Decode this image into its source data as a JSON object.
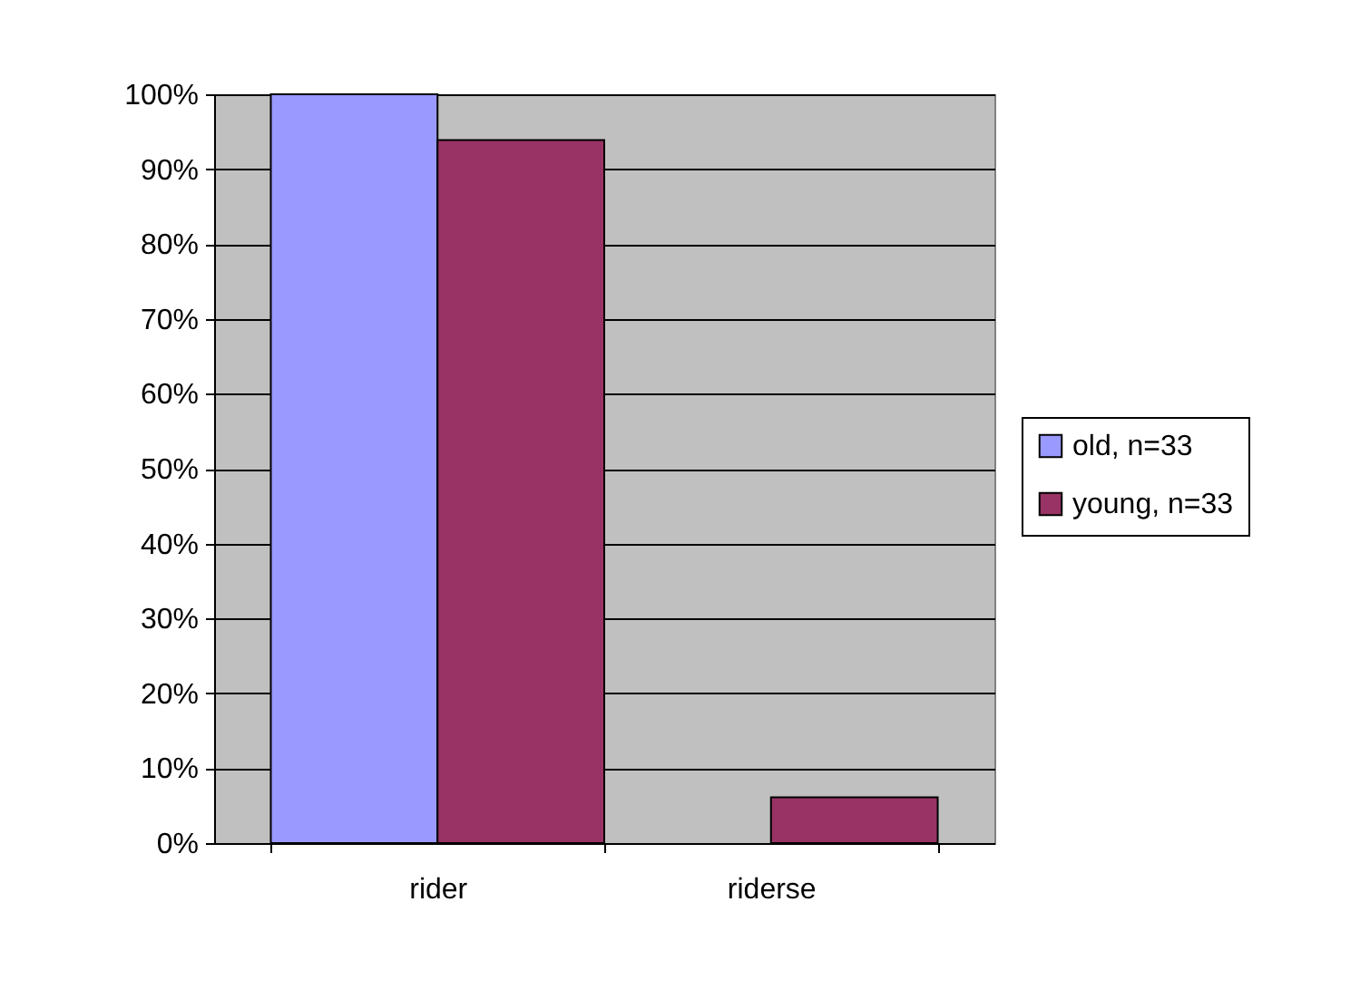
{
  "chart_data": {
    "type": "bar",
    "categories": [
      "rider",
      "riderse"
    ],
    "series": [
      {
        "name": "old, n=33",
        "color": "#9999ff",
        "values": [
          100,
          null
        ]
      },
      {
        "name": "young, n=33",
        "color": "#993366",
        "values": [
          93.9,
          6.1
        ]
      }
    ],
    "ylim": [
      0,
      100
    ],
    "yticks": [
      {
        "value": 0,
        "label": "0%"
      },
      {
        "value": 10,
        "label": "10%"
      },
      {
        "value": 20,
        "label": "20%"
      },
      {
        "value": 30,
        "label": "30%"
      },
      {
        "value": 40,
        "label": "40%"
      },
      {
        "value": 50,
        "label": "50%"
      },
      {
        "value": 60,
        "label": "60%"
      },
      {
        "value": 70,
        "label": "70%"
      },
      {
        "value": 80,
        "label": "80%"
      },
      {
        "value": 90,
        "label": "90%"
      },
      {
        "value": 100,
        "label": "100%"
      }
    ],
    "grid": "y",
    "legend": "right"
  }
}
